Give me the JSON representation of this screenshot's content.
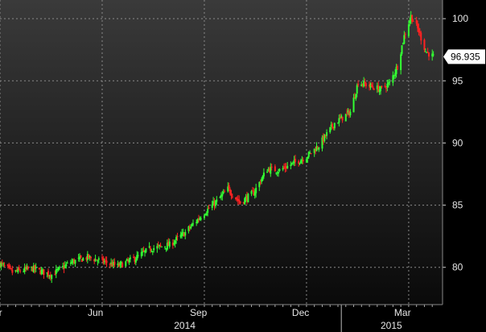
{
  "colors": {
    "background_top": "#3a3a3a",
    "background_bottom": "#0a0a0a",
    "up_candle": "#33ff33",
    "down_candle": "#ff2222",
    "grid": "#8a8a8a",
    "axis_panel": "#000000",
    "last_price_box": "#ffffff"
  },
  "chart_data": {
    "type": "candlestick",
    "title": "",
    "xlabel": "",
    "ylabel": "",
    "ylim": [
      77,
      101.5
    ],
    "y_ticks": [
      80,
      85,
      90,
      95,
      100
    ],
    "grid": true,
    "y_axis_position": "right",
    "last_price": 96.935,
    "last_price_label": "96.935",
    "x_month_ticks": [
      {
        "label": "Mar",
        "date": "2014-03-03"
      },
      {
        "label": "Jun",
        "date": "2014-06-02"
      },
      {
        "label": "Sep",
        "date": "2014-09-01"
      },
      {
        "label": "Dec",
        "date": "2014-12-01"
      },
      {
        "label": "Mar",
        "date": "2015-03-02"
      }
    ],
    "x_year_labels": [
      {
        "label": "2014",
        "date": "2014-08-15"
      },
      {
        "label": "2015",
        "date": "2015-02-15"
      }
    ],
    "x_range": [
      "2014-03-03",
      "2015-03-25"
    ],
    "price_path": [
      {
        "date": "2014-03-03",
        "close": 80.3
      },
      {
        "date": "2014-03-14",
        "close": 79.6
      },
      {
        "date": "2014-04-01",
        "close": 79.9
      },
      {
        "date": "2014-04-18",
        "close": 79.4
      },
      {
        "date": "2014-05-05",
        "close": 80.4
      },
      {
        "date": "2014-05-20",
        "close": 80.8
      },
      {
        "date": "2014-06-02",
        "close": 80.5
      },
      {
        "date": "2014-06-16",
        "close": 80.1
      },
      {
        "date": "2014-07-01",
        "close": 80.7
      },
      {
        "date": "2014-07-15",
        "close": 81.5
      },
      {
        "date": "2014-08-01",
        "close": 81.8
      },
      {
        "date": "2014-08-15",
        "close": 82.8
      },
      {
        "date": "2014-09-01",
        "close": 84.4
      },
      {
        "date": "2014-09-12",
        "close": 85.3
      },
      {
        "date": "2014-09-22",
        "close": 86.3
      },
      {
        "date": "2014-10-03",
        "close": 85.2
      },
      {
        "date": "2014-10-15",
        "close": 86.0
      },
      {
        "date": "2014-10-27",
        "close": 87.9
      },
      {
        "date": "2014-11-07",
        "close": 87.8
      },
      {
        "date": "2014-11-20",
        "close": 88.4
      },
      {
        "date": "2014-12-01",
        "close": 88.9
      },
      {
        "date": "2014-12-12",
        "close": 89.8
      },
      {
        "date": "2014-12-26",
        "close": 91.6
      },
      {
        "date": "2015-01-09",
        "close": 92.5
      },
      {
        "date": "2015-01-16",
        "close": 94.9
      },
      {
        "date": "2015-01-26",
        "close": 94.6
      },
      {
        "date": "2015-02-05",
        "close": 94.3
      },
      {
        "date": "2015-02-13",
        "close": 94.8
      },
      {
        "date": "2015-02-20",
        "close": 96.2
      },
      {
        "date": "2015-02-26",
        "close": 98.6
      },
      {
        "date": "2015-03-04",
        "close": 100.2
      },
      {
        "date": "2015-03-11",
        "close": 99.0
      },
      {
        "date": "2015-03-17",
        "close": 97.4
      },
      {
        "date": "2015-03-24",
        "close": 96.935
      }
    ]
  }
}
